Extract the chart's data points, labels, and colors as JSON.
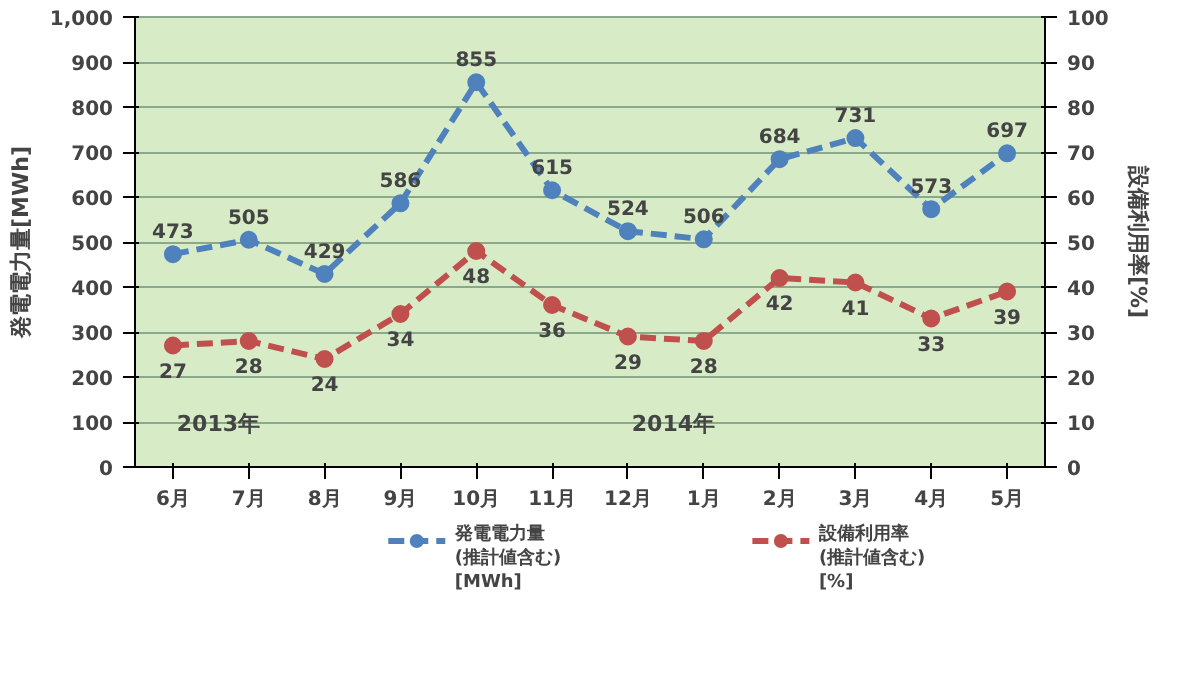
{
  "chart_data": {
    "type": "line",
    "categories": [
      "6月",
      "7月",
      "8月",
      "9月",
      "10月",
      "11月",
      "12月",
      "1月",
      "2月",
      "3月",
      "4月",
      "5月"
    ],
    "series": [
      {
        "name": "発電電力量\n(推計値含む)\n[MWh]",
        "color": "#4f81bd",
        "values": [
          473,
          505,
          429,
          586,
          855,
          615,
          524,
          506,
          684,
          731,
          573,
          697
        ]
      },
      {
        "name": "設備利用率\n(推計値含む)\n[%]",
        "color": "#c0504d",
        "axis": "y2",
        "values": [
          27,
          28,
          24,
          34,
          48,
          36,
          29,
          28,
          42,
          41,
          33,
          39
        ]
      }
    ],
    "ylabel": "発電電力量[MWh]",
    "y2label": "設備利用率[%]",
    "ylim": [
      0,
      1000
    ],
    "yticks": [
      0,
      100,
      200,
      300,
      400,
      500,
      600,
      700,
      800,
      900,
      {
        "value": 1000,
        "label": "1,000"
      }
    ],
    "y2lim": [
      0,
      100
    ],
    "y2ticks": [
      0,
      10,
      20,
      30,
      40,
      50,
      60,
      70,
      80,
      90,
      100
    ],
    "annotations": [
      "2013年",
      "2014年"
    ],
    "data_labels": true,
    "grid": "y",
    "legend": "bottom",
    "marker": "circle",
    "line_style": "dashed"
  }
}
